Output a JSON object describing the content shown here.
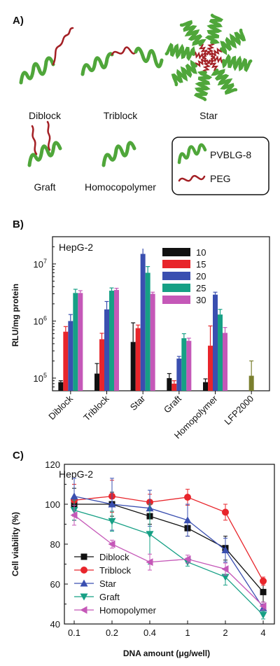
{
  "panel_a": {
    "label": "A)",
    "architectures": [
      "Diblock",
      "Triblock",
      "Star",
      "Graft",
      "Homocopolymer"
    ],
    "legend": [
      {
        "name": "PVBLG-8",
        "color": "#4fa63a",
        "icon": "green-helix"
      },
      {
        "name": "PEG",
        "color": "#a31f24",
        "icon": "red-coil"
      }
    ]
  },
  "panel_b": {
    "label": "B)",
    "cell_line": "HepG-2"
  },
  "panel_c": {
    "label": "C)",
    "cell_line": "HepG-2"
  },
  "chart_data": [
    {
      "type": "bar",
      "panel": "B",
      "ylabel": "RLU/mg protein",
      "yscale": "log",
      "ylim": [
        60000,
        30000000
      ],
      "yticks": [
        {
          "value": 100000,
          "base": "10",
          "exp": "5"
        },
        {
          "value": 1000000,
          "base": "10",
          "exp": "6"
        },
        {
          "value": 10000000,
          "base": "10",
          "exp": "7"
        }
      ],
      "categories": [
        "Diblock",
        "Triblock",
        "Star",
        "Graft",
        "Homopolymer",
        "LFP2000"
      ],
      "legend_position": "top-right",
      "series": [
        {
          "name": "10",
          "color": "#111111",
          "values": [
            85000,
            120000,
            430000,
            100000,
            85000,
            null
          ],
          "errors": [
            5000,
            60000,
            500000,
            20000,
            12000,
            null
          ]
        },
        {
          "name": "15",
          "color": "#e8252b",
          "values": [
            650000,
            480000,
            750000,
            80000,
            370000,
            null
          ],
          "errors": [
            150000,
            130000,
            100000,
            10000,
            450000,
            null
          ]
        },
        {
          "name": "20",
          "color": "#3a4fb0",
          "values": [
            1000000,
            1600000,
            15000000,
            220000,
            2900000,
            null
          ],
          "errors": [
            300000,
            600000,
            4000000,
            20000,
            300000,
            null
          ]
        },
        {
          "name": "25",
          "color": "#16a085",
          "values": [
            3100000,
            3400000,
            7000000,
            500000,
            1300000,
            null
          ],
          "errors": [
            500000,
            400000,
            2000000,
            100000,
            300000,
            null
          ]
        },
        {
          "name": "30",
          "color": "#c558b8",
          "values": [
            3100000,
            3500000,
            3000000,
            450000,
            620000,
            null
          ],
          "errors": [
            300000,
            250000,
            200000,
            50000,
            150000,
            null
          ]
        },
        {
          "name": "",
          "color": "#7a7f2e",
          "values": [
            null,
            null,
            null,
            null,
            null,
            110000
          ],
          "errors": [
            null,
            null,
            null,
            null,
            null,
            90000
          ]
        }
      ]
    },
    {
      "type": "line",
      "panel": "C",
      "xlabel": "DNA amount (μg/well)",
      "ylabel": "Cell viability (%)",
      "x": [
        "0.1",
        "0.2",
        "0.4",
        "1",
        "2",
        "4"
      ],
      "ylim": [
        40,
        120
      ],
      "yticks": [
        40,
        60,
        80,
        100,
        120
      ],
      "legend_position": "bottom-left",
      "series": [
        {
          "name": "Diblock",
          "color": "#111111",
          "marker": "square",
          "values": [
            100,
            100,
            94,
            88,
            78,
            56
          ],
          "errors": [
            8,
            6,
            4,
            4,
            6,
            5
          ]
        },
        {
          "name": "Triblock",
          "color": "#e8252b",
          "marker": "circle",
          "values": [
            102,
            104,
            101,
            103.5,
            96,
            61.5
          ],
          "errors": [
            8,
            8,
            4,
            4,
            4,
            2
          ]
        },
        {
          "name": "Star",
          "color": "#3a4fb0",
          "marker": "triangle-up",
          "values": [
            104,
            100,
            98,
            92,
            77,
            48
          ],
          "errors": [
            9,
            13,
            9,
            8,
            6,
            2
          ]
        },
        {
          "name": "Graft",
          "color": "#16a085",
          "marker": "triangle-down",
          "values": [
            97,
            91.5,
            85,
            71,
            63.5,
            44.5
          ],
          "errors": [
            5,
            5,
            15,
            2,
            4,
            2
          ]
        },
        {
          "name": "Homopolymer",
          "color": "#c558b8",
          "marker": "triangle-left",
          "values": [
            94.5,
            80,
            71,
            72.5,
            67.5,
            49
          ],
          "errors": [
            5,
            2,
            4,
            2,
            3,
            2
          ]
        }
      ]
    }
  ]
}
